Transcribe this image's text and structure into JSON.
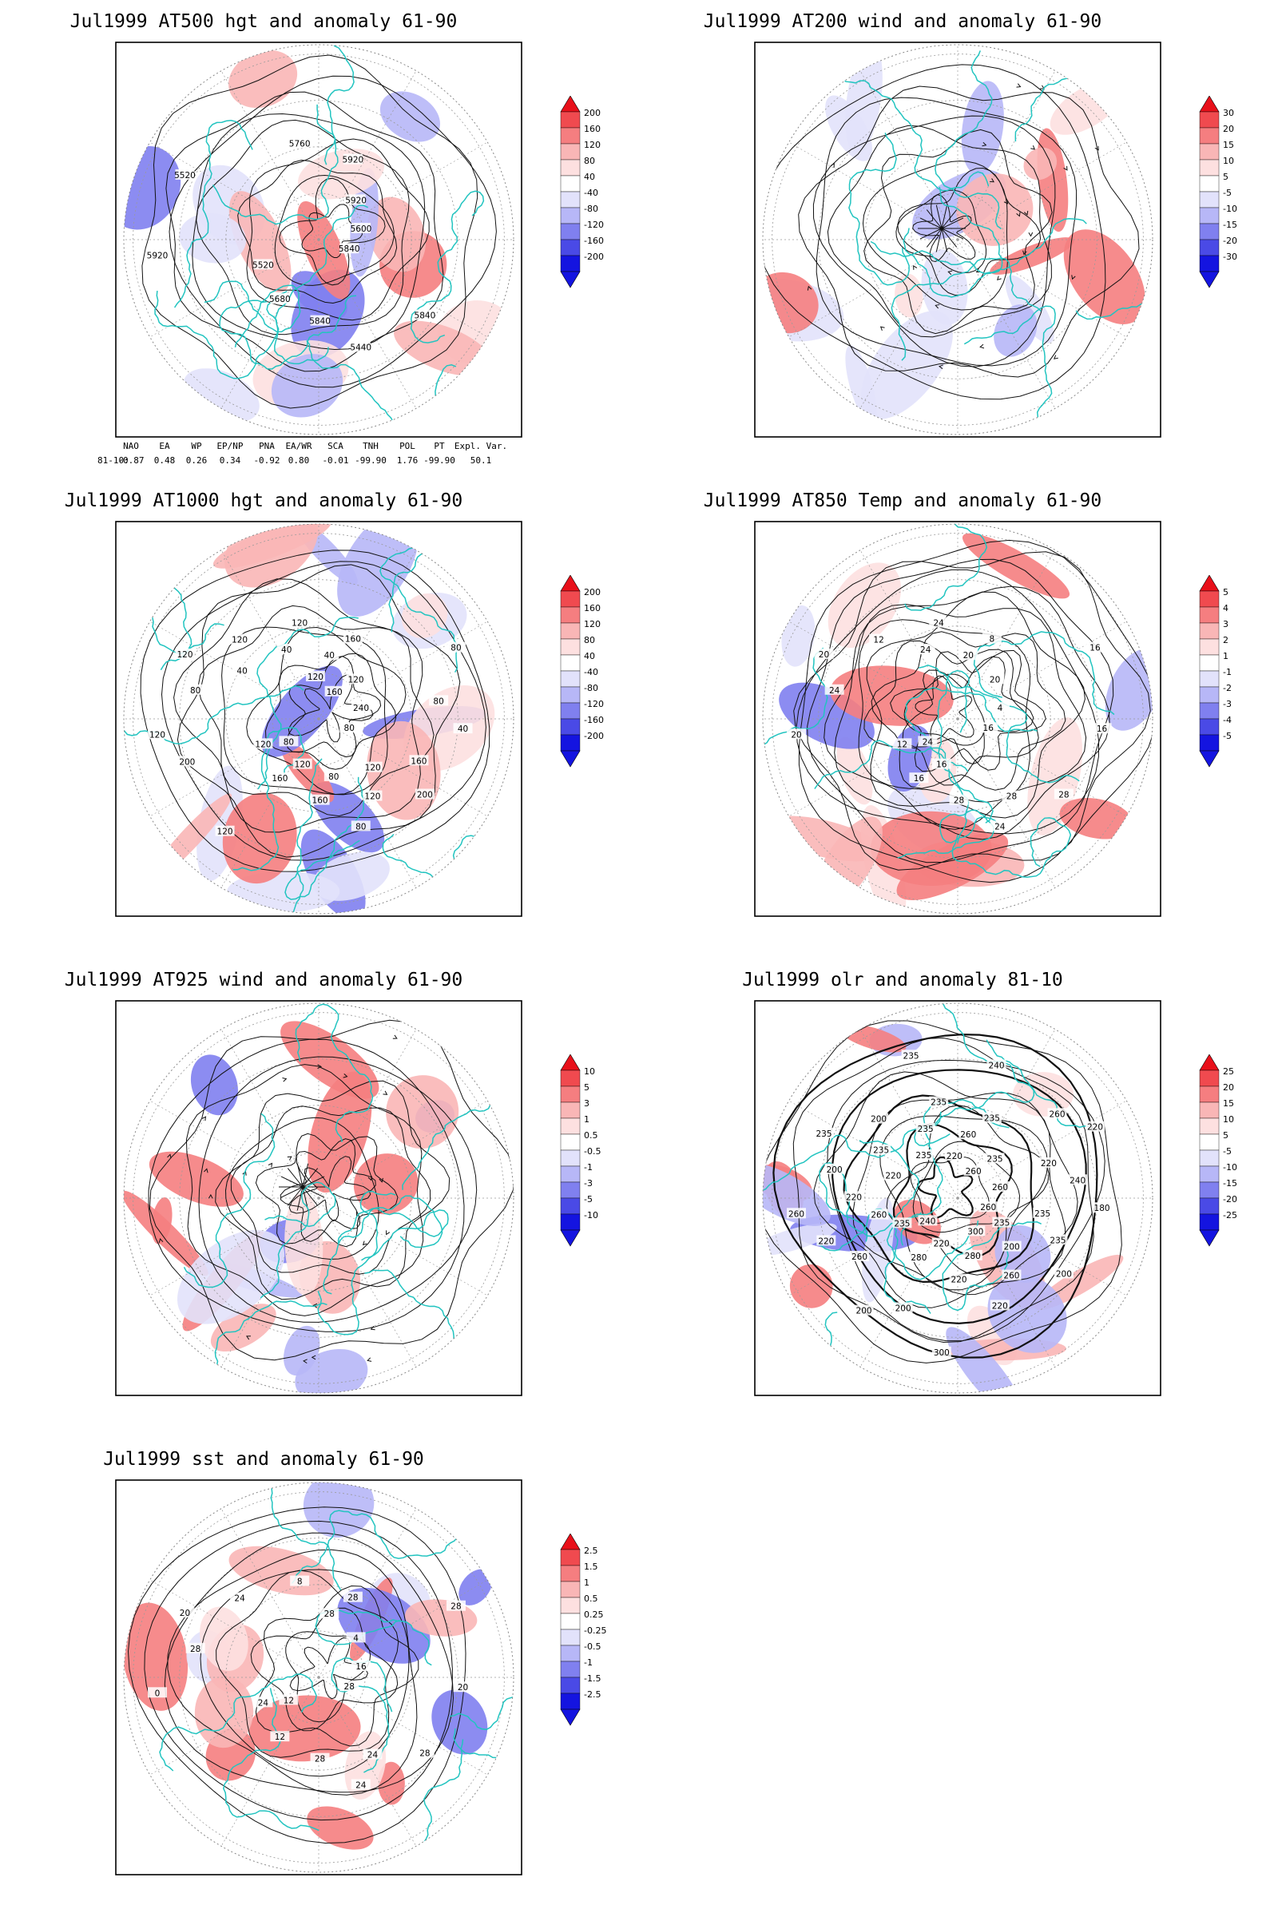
{
  "panels": [
    {
      "id": "z500",
      "title": "Jul1999 AT500 hgt and anomaly 61-90",
      "type": "hgt",
      "ticks": [
        "200",
        "160",
        "120",
        "80",
        "40",
        "-40",
        "-80",
        "-120",
        "-160",
        "-200"
      ],
      "labels": [
        "5840",
        "5520",
        "5920",
        "5440",
        "5520",
        "5600",
        "5680",
        "5760",
        "5840",
        "5920",
        "5920",
        "5840"
      ]
    },
    {
      "id": "u200",
      "title": "Jul1999 AT200 wind and anomaly 61-90",
      "type": "wind",
      "ticks": [
        "30",
        "20",
        "15",
        "10",
        "5",
        "-5",
        "-10",
        "-15",
        "-20",
        "-30"
      ],
      "labels": []
    },
    {
      "id": "z1000",
      "title": "Jul1999 AT1000 hgt and anomaly 61-90",
      "type": "hgt",
      "ticks": [
        "200",
        "160",
        "120",
        "80",
        "40",
        "-40",
        "-80",
        "-120",
        "-160",
        "-200"
      ],
      "labels": [
        "80",
        "120",
        "160",
        "80",
        "120",
        "240",
        "160",
        "120",
        "200",
        "120",
        "120",
        "160",
        "120",
        "40",
        "80",
        "40",
        "120",
        "80",
        "80",
        "120",
        "40",
        "160",
        "200",
        "160",
        "80",
        "40",
        "80",
        "120",
        "120",
        "120"
      ]
    },
    {
      "id": "t850",
      "title": "Jul1999 AT850 Temp and anomaly 61-90",
      "type": "temp",
      "ticks": [
        "5",
        "4",
        "3",
        "2",
        "1",
        "-1",
        "-2",
        "-3",
        "-4",
        "-5"
      ],
      "labels": [
        "16",
        "12",
        "8",
        "24",
        "20",
        "4",
        "16",
        "24",
        "28",
        "20",
        "20",
        "28",
        "12",
        "16",
        "24",
        "20",
        "28",
        "24",
        "16",
        "16",
        "24"
      ]
    },
    {
      "id": "u925",
      "title": "Jul1999 AT925 wind and anomaly 61-90",
      "type": "wind",
      "ticks": [
        "10",
        "5",
        "3",
        "1",
        "0.5",
        "-0.5",
        "-1",
        "-3",
        "-5",
        "-10"
      ],
      "labels": []
    },
    {
      "id": "olr",
      "title": "Jul1999 olr and anomaly 81-10",
      "type": "olr",
      "ticks": [
        "25",
        "20",
        "15",
        "10",
        "5",
        "-5",
        "-10",
        "-15",
        "-20",
        "-25"
      ],
      "labels": [
        "260",
        "235",
        "235",
        "220",
        "235",
        "260",
        "280",
        "235",
        "200",
        "260",
        "235",
        "220",
        "200",
        "180",
        "240",
        "260",
        "260",
        "200",
        "220",
        "220",
        "235",
        "235",
        "220",
        "260",
        "280",
        "235",
        "240",
        "200",
        "220",
        "200",
        "220",
        "260",
        "300",
        "235",
        "235",
        "260",
        "240",
        "300",
        "220",
        "220",
        "200",
        "235",
        "235",
        "260"
      ]
    },
    {
      "id": "sst",
      "title": "Jul1999 sst and anomaly 61-90",
      "type": "sst",
      "ticks": [
        "2.5",
        "1.5",
        "1",
        "0.5",
        "0.25",
        "-0.25",
        "-0.5",
        "-1",
        "-1.5",
        "-2.5"
      ],
      "labels": [
        "28",
        "24",
        "28",
        "24",
        "20",
        "16",
        "12",
        "8",
        "28",
        "0",
        "4",
        "28",
        "24",
        "20",
        "12",
        "28",
        "24",
        "28",
        "28"
      ]
    }
  ],
  "indices": {
    "header": [
      "NAO",
      "EA",
      "WP",
      "EP/NP",
      "PNA",
      "EA/WR",
      "SCA",
      "TNH",
      "POL",
      "PT",
      "Expl. Var."
    ],
    "row_label": "81-10:",
    "values": [
      "-0.87",
      "0.48",
      "0.26",
      "0.34",
      "-0.92",
      "0.80",
      "-0.01",
      "-99.90",
      "1.76",
      "-99.90",
      "50.1"
    ]
  },
  "colors": {
    "coast": "#22c4c0",
    "contour": "#111111",
    "scale": [
      "#e8101a",
      "#f04a4f",
      "#f57e80",
      "#f9b6b6",
      "#fde0e0",
      "#ffffff",
      "#e2e2fb",
      "#b7b7f7",
      "#8080ef",
      "#4a4ae6",
      "#1414e0"
    ]
  }
}
